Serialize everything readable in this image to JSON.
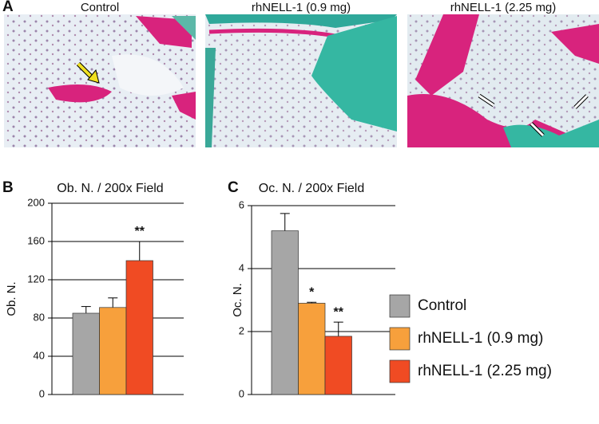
{
  "figure": {
    "panel_labels": [
      "A",
      "B",
      "C"
    ],
    "image_captions": [
      "Control",
      "rhNELL-1 (0.9 mg)",
      "rhNELL-1 (2.25 mg)"
    ]
  },
  "legend": {
    "labels": [
      "Control",
      "rhNELL-1 (0.9 mg)",
      "rhNELL-1 (2.25 mg)"
    ],
    "colors": [
      "#a6a6a6",
      "#f7a03c",
      "#f04b23"
    ]
  },
  "chart_data": [
    {
      "type": "bar",
      "title": "Ob. N. / 200x Field",
      "ylabel": "Ob. N.",
      "ylim": [
        0,
        200
      ],
      "yticks": [
        0,
        40,
        80,
        120,
        160,
        200
      ],
      "grid": true,
      "values": [
        85,
        91,
        140
      ],
      "errors": [
        7,
        10,
        20
      ],
      "annotations": [
        null,
        null,
        "**"
      ]
    },
    {
      "type": "bar",
      "title": "Oc. N. / 200x Field",
      "ylabel": "Oc. N.",
      "ylim": [
        0,
        6
      ],
      "yticks": [
        0,
        2,
        4,
        6
      ],
      "grid": true,
      "values": [
        5.2,
        2.9,
        1.85
      ],
      "errors": [
        0.55,
        0.03,
        0.45
      ],
      "annotations": [
        null,
        "*",
        "**"
      ]
    }
  ]
}
